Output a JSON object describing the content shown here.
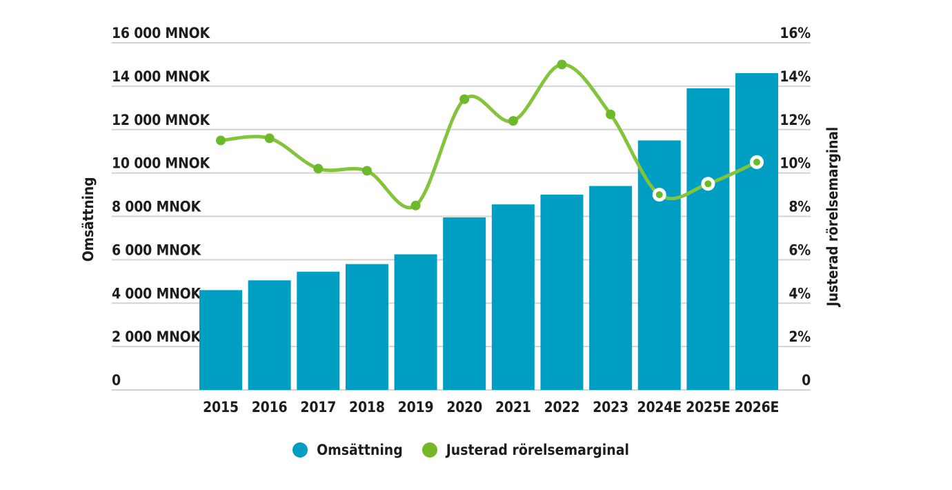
{
  "chart_data": {
    "type": "combo",
    "categories": [
      "2015",
      "2016",
      "2017",
      "2018",
      "2019",
      "2020",
      "2021",
      "2022",
      "2023",
      "2024E",
      "2025E",
      "2026E"
    ],
    "series": [
      {
        "name": "Omsättning",
        "type": "bar",
        "axis": "left",
        "unit": "MNOK",
        "color": "#009EC3",
        "values": [
          4600,
          5050,
          5450,
          5800,
          6250,
          7950,
          8550,
          9000,
          9400,
          11500,
          13900,
          14600
        ]
      },
      {
        "name": "Justerad rörelsemarginal",
        "type": "line",
        "axis": "right",
        "unit": "%",
        "line_color": "#84C43C",
        "marker_color": "#6CB92C",
        "marker_ring_color": "#FFFFFF",
        "ring_marker_indices": [
          9,
          10,
          11
        ],
        "values": [
          11.5,
          11.6,
          10.2,
          10.1,
          8.5,
          13.4,
          12.4,
          15.0,
          12.7,
          9.0,
          9.5,
          10.5
        ]
      }
    ],
    "left_axis": {
      "title": "Omsättning",
      "range": [
        0,
        16000
      ],
      "step": 2000,
      "ticks": [
        "16 000 MNOK",
        "14 000 MNOK",
        "12 000 MNOK",
        "10 000 MNOK",
        "8 000 MNOK",
        "6 000 MNOK",
        "4 000 MNOK",
        "2 000 MNOK",
        "0"
      ]
    },
    "right_axis": {
      "title": "Justerad rörelsemarginal",
      "range": [
        0,
        16
      ],
      "step": 2,
      "ticks": [
        "16%",
        "14%",
        "12%",
        "10%",
        "8%",
        "6%",
        "4%",
        "2%",
        "0"
      ]
    },
    "legend": [
      {
        "label": "Omsättning",
        "color": "#009EC3"
      },
      {
        "label": "Justerad rörelsemarginal",
        "color": "#76B82A"
      }
    ],
    "grid": true,
    "grid_color": "#D2D2D2",
    "text_color": "#1D1D1B",
    "background": "#FFFFFF"
  }
}
